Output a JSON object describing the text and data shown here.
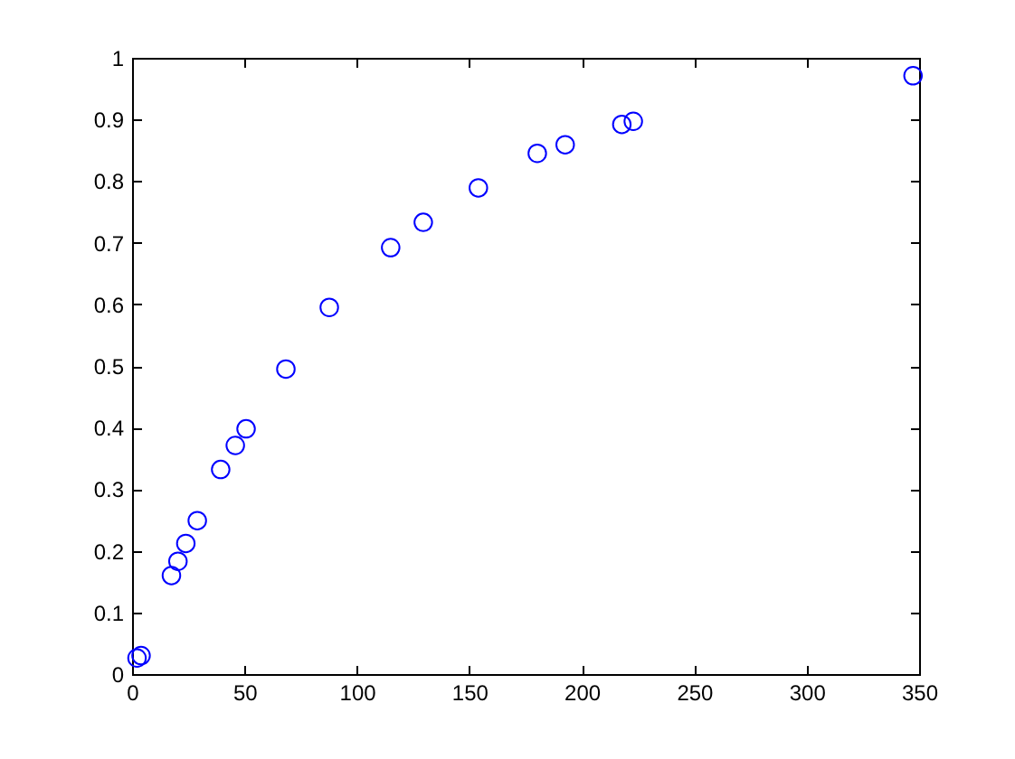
{
  "chart_data": {
    "type": "scatter",
    "marker": "circle",
    "color": "#0000ff",
    "grid": false,
    "x": [
      2.2,
      4,
      17.5,
      20.4,
      23.9,
      29,
      39.4,
      45.9,
      50.7,
      68.4,
      87.7,
      115,
      129.5,
      154,
      180.2,
      192.6,
      217.8,
      222.9,
      347.3
    ],
    "values": [
      0.026,
      0.03,
      0.16,
      0.183,
      0.212,
      0.249,
      0.332,
      0.371,
      0.398,
      0.495,
      0.595,
      0.692,
      0.733,
      0.789,
      0.845,
      0.859,
      0.892,
      0.897,
      0.971
    ],
    "xlim": [
      0,
      350
    ],
    "ylim": [
      0,
      1
    ],
    "xticks": [
      0,
      50,
      100,
      150,
      200,
      250,
      300,
      350
    ],
    "yticks": [
      0,
      0.1,
      0.2,
      0.3,
      0.4,
      0.5,
      0.6,
      0.7,
      0.8,
      0.9,
      1
    ]
  }
}
